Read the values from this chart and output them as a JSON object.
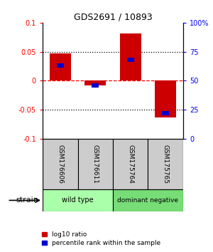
{
  "title": "GDS2691 / 10893",
  "samples": [
    "GSM176606",
    "GSM176611",
    "GSM175764",
    "GSM175765"
  ],
  "log10_ratio": [
    0.047,
    -0.008,
    0.082,
    -0.063
  ],
  "percentile_rank": [
    0.63,
    0.46,
    0.68,
    0.22
  ],
  "ylim": [
    -0.1,
    0.1
  ],
  "yticks_left": [
    -0.1,
    -0.05,
    0,
    0.05,
    0.1
  ],
  "ytick_labels_left": [
    "-0.1",
    "-0.05",
    "0",
    "0.05",
    "0.1"
  ],
  "ytick_labels_right": [
    "0",
    "25",
    "50",
    "75",
    "100%"
  ],
  "hlines_dotted": [
    -0.05,
    0.05
  ],
  "hline_dashed": 0,
  "groups": [
    {
      "label": "wild type",
      "samples": [
        0,
        1
      ],
      "color": "#aaffaa"
    },
    {
      "label": "dominant negative",
      "samples": [
        2,
        3
      ],
      "color": "#77dd77"
    }
  ],
  "bar_width": 0.6,
  "percentile_bar_width": 0.2,
  "bar_color": "#cc0000",
  "percentile_color": "#0000cc",
  "group_label": "strain",
  "legend_ratio_label": "log10 ratio",
  "legend_percentile_label": "percentile rank within the sample",
  "bg_color": "#ffffff",
  "label_area_bg": "#cccccc"
}
